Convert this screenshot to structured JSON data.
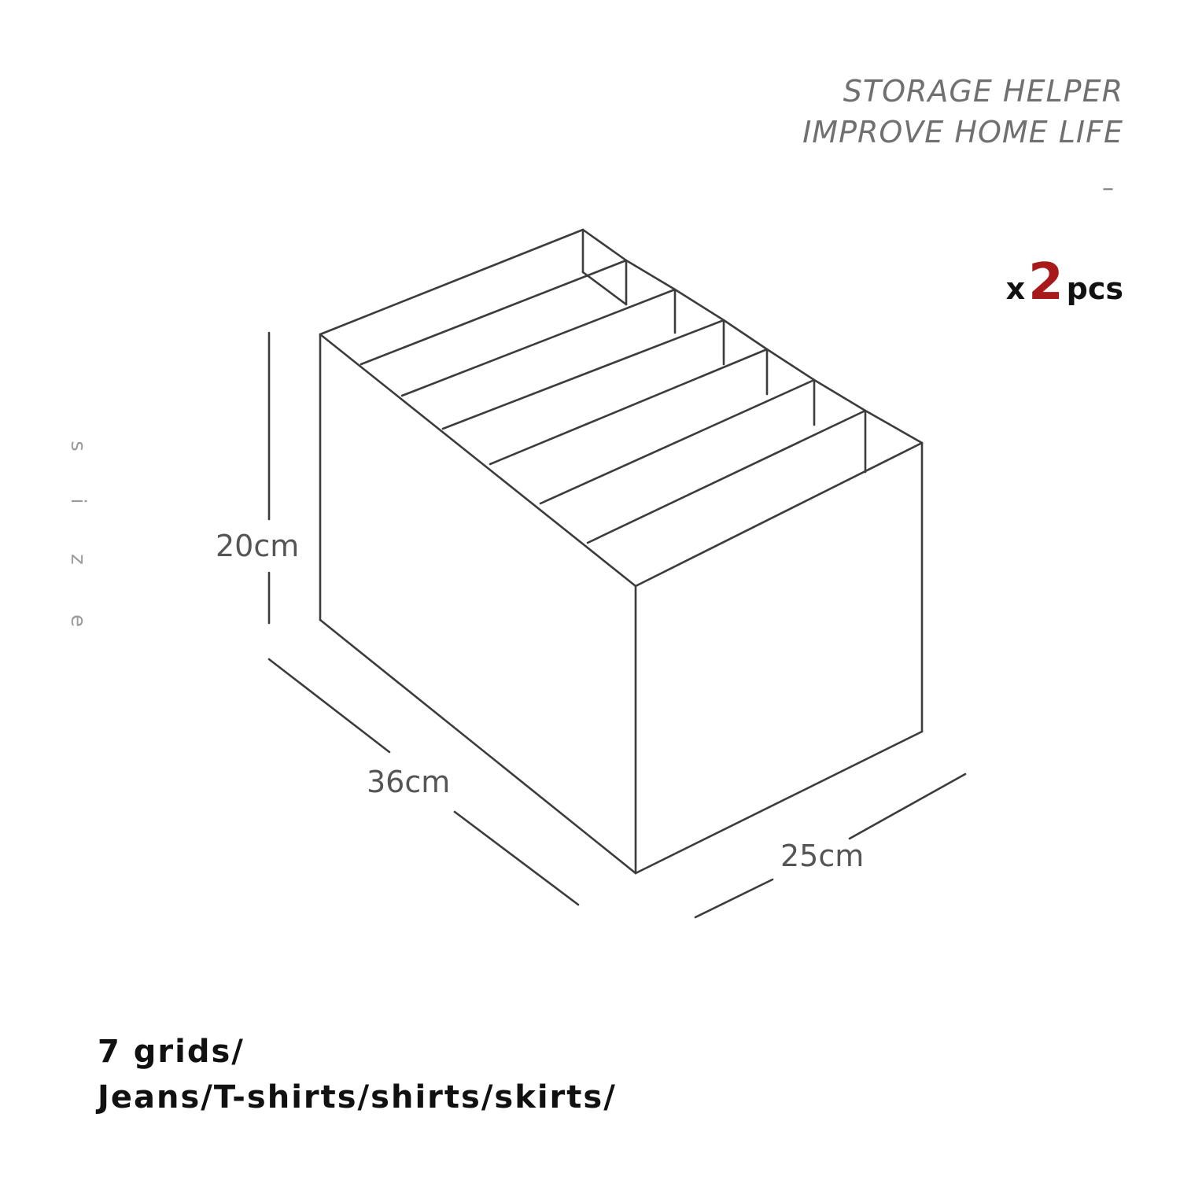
{
  "tagline": {
    "line1": "STORAGE HELPER",
    "line2": "IMPROVE HOME LIFE",
    "dash": "–"
  },
  "quantity": {
    "prefix": "x",
    "number": "2",
    "suffix": "pcs"
  },
  "side_label": [
    "s",
    "i",
    "z",
    "e"
  ],
  "dimensions": {
    "height": "20cm",
    "length": "36cm",
    "width": "25cm"
  },
  "bottom_text": {
    "line1": "7 grids/",
    "line2": "Jeans/T-shirts/shirts/skirts/"
  },
  "colors": {
    "qty_number": "#a81919",
    "line": "#3c3c3c"
  }
}
